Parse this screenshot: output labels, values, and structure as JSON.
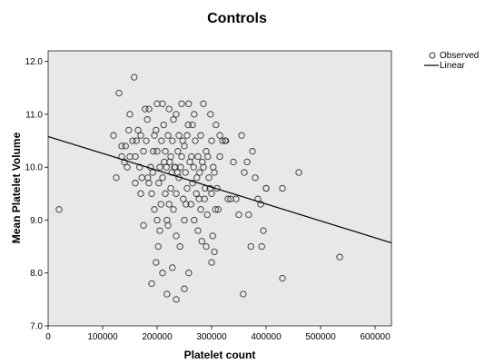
{
  "chart_data": {
    "type": "scatter",
    "title": "Controls",
    "xlabel": "Platelet count",
    "ylabel": "Mean Platelet Volume",
    "xlim": [
      0,
      630000
    ],
    "ylim": [
      7.0,
      12.2
    ],
    "xticks": [
      0,
      100000,
      200000,
      300000,
      400000,
      500000,
      600000
    ],
    "yticks": [
      7.0,
      8.0,
      9.0,
      10.0,
      11.0,
      12.0
    ],
    "xtick_labels": [
      "0",
      "100000",
      "200000",
      "300000",
      "400000",
      "500000",
      "600000"
    ],
    "ytick_labels": [
      "7.0",
      "8.0",
      "9.0",
      "10.0",
      "11.0",
      "12.0"
    ],
    "grid": false,
    "legend_position": "top-right outside",
    "plot_background": "#e8e8e8",
    "marker_color": "#333333",
    "line_color": "#000000",
    "series": [
      {
        "name": "Observed",
        "kind": "scatter",
        "points": [
          [
            20000,
            9.2
          ],
          [
            120000,
            10.6
          ],
          [
            130000,
            11.4
          ],
          [
            125000,
            9.8
          ],
          [
            135000,
            10.2
          ],
          [
            140000,
            10.1
          ],
          [
            142000,
            10.4
          ],
          [
            145000,
            10.0
          ],
          [
            150000,
            10.2
          ],
          [
            155000,
            10.5
          ],
          [
            158000,
            11.7
          ],
          [
            150000,
            11.0
          ],
          [
            160000,
            9.7
          ],
          [
            162000,
            10.5
          ],
          [
            165000,
            10.7
          ],
          [
            168000,
            10.0
          ],
          [
            170000,
            9.5
          ],
          [
            172000,
            9.8
          ],
          [
            175000,
            10.3
          ],
          [
            175000,
            8.9
          ],
          [
            178000,
            11.1
          ],
          [
            180000,
            10.5
          ],
          [
            182000,
            10.9
          ],
          [
            185000,
            11.1
          ],
          [
            185000,
            9.7
          ],
          [
            188000,
            10.0
          ],
          [
            190000,
            9.5
          ],
          [
            190000,
            7.8
          ],
          [
            192000,
            9.9
          ],
          [
            195000,
            10.6
          ],
          [
            195000,
            9.2
          ],
          [
            198000,
            10.7
          ],
          [
            198000,
            8.2
          ],
          [
            200000,
            11.2
          ],
          [
            200000,
            10.3
          ],
          [
            200000,
            9.0
          ],
          [
            202000,
            8.5
          ],
          [
            205000,
            10.0
          ],
          [
            205000,
            8.8
          ],
          [
            208000,
            10.5
          ],
          [
            210000,
            11.2
          ],
          [
            210000,
            9.8
          ],
          [
            210000,
            8.0
          ],
          [
            212000,
            10.8
          ],
          [
            215000,
            10.3
          ],
          [
            215000,
            9.5
          ],
          [
            218000,
            9.0
          ],
          [
            218000,
            7.6
          ],
          [
            220000,
            10.6
          ],
          [
            220000,
            8.9
          ],
          [
            222000,
            11.1
          ],
          [
            222000,
            9.3
          ],
          [
            225000,
            10.2
          ],
          [
            225000,
            9.6
          ],
          [
            228000,
            10.5
          ],
          [
            228000,
            8.1
          ],
          [
            230000,
            10.9
          ],
          [
            230000,
            9.2
          ],
          [
            232000,
            10.0
          ],
          [
            235000,
            11.0
          ],
          [
            235000,
            9.5
          ],
          [
            235000,
            8.7
          ],
          [
            235000,
            7.5
          ],
          [
            238000,
            10.3
          ],
          [
            240000,
            10.6
          ],
          [
            240000,
            9.8
          ],
          [
            242000,
            8.5
          ],
          [
            245000,
            11.2
          ],
          [
            245000,
            10.2
          ],
          [
            248000,
            9.4
          ],
          [
            250000,
            10.4
          ],
          [
            250000,
            9.0
          ],
          [
            250000,
            7.7
          ],
          [
            252000,
            9.9
          ],
          [
            255000,
            10.6
          ],
          [
            255000,
            9.6
          ],
          [
            258000,
            11.2
          ],
          [
            258000,
            8.0
          ],
          [
            260000,
            10.1
          ],
          [
            262000,
            9.3
          ],
          [
            265000,
            10.8
          ],
          [
            265000,
            9.7
          ],
          [
            268000,
            11.0
          ],
          [
            268000,
            9.0
          ],
          [
            270000,
            10.5
          ],
          [
            272000,
            9.5
          ],
          [
            275000,
            10.2
          ],
          [
            275000,
            8.8
          ],
          [
            278000,
            9.9
          ],
          [
            280000,
            10.6
          ],
          [
            280000,
            9.2
          ],
          [
            282000,
            8.6
          ],
          [
            285000,
            11.2
          ],
          [
            285000,
            10.0
          ],
          [
            288000,
            9.6
          ],
          [
            290000,
            10.3
          ],
          [
            290000,
            8.5
          ],
          [
            292000,
            9.1
          ],
          [
            295000,
            9.8
          ],
          [
            298000,
            11.0
          ],
          [
            300000,
            10.5
          ],
          [
            300000,
            9.5
          ],
          [
            300000,
            8.2
          ],
          [
            302000,
            8.7
          ],
          [
            305000,
            9.9
          ],
          [
            305000,
            8.4
          ],
          [
            308000,
            10.8
          ],
          [
            310000,
            9.6
          ],
          [
            312000,
            9.2
          ],
          [
            315000,
            10.6
          ],
          [
            320000,
            10.5
          ],
          [
            325000,
            10.5
          ],
          [
            330000,
            9.4
          ],
          [
            335000,
            9.4
          ],
          [
            340000,
            10.1
          ],
          [
            345000,
            9.4
          ],
          [
            350000,
            9.1
          ],
          [
            355000,
            10.6
          ],
          [
            358000,
            7.6
          ],
          [
            360000,
            9.9
          ],
          [
            365000,
            10.1
          ],
          [
            368000,
            9.1
          ],
          [
            372000,
            8.5
          ],
          [
            375000,
            10.3
          ],
          [
            380000,
            9.8
          ],
          [
            385000,
            9.4
          ],
          [
            390000,
            9.3
          ],
          [
            392000,
            8.5
          ],
          [
            395000,
            8.8
          ],
          [
            400000,
            9.6
          ],
          [
            400000,
            9.6
          ],
          [
            430000,
            9.6
          ],
          [
            430000,
            7.9
          ],
          [
            460000,
            9.9
          ],
          [
            535000,
            8.3
          ],
          [
            135000,
            10.4
          ],
          [
            148000,
            10.7
          ],
          [
            160000,
            10.2
          ],
          [
            170000,
            10.6
          ],
          [
            183000,
            9.8
          ],
          [
            193000,
            10.3
          ],
          [
            203000,
            9.7
          ],
          [
            207000,
            9.3
          ],
          [
            213000,
            10.1
          ],
          [
            217000,
            10.0
          ],
          [
            223000,
            10.1
          ],
          [
            227000,
            9.9
          ],
          [
            233000,
            10.0
          ],
          [
            237000,
            9.9
          ],
          [
            243000,
            10.0
          ],
          [
            247000,
            10.5
          ],
          [
            253000,
            9.3
          ],
          [
            257000,
            10.8
          ],
          [
            263000,
            10.2
          ],
          [
            267000,
            10.0
          ],
          [
            273000,
            9.8
          ],
          [
            277000,
            9.4
          ],
          [
            283000,
            10.1
          ],
          [
            287000,
            9.4
          ],
          [
            293000,
            10.2
          ],
          [
            297000,
            9.6
          ],
          [
            303000,
            10.0
          ],
          [
            307000,
            9.2
          ],
          [
            315000,
            10.2
          ],
          [
            326000,
            10.5
          ]
        ]
      },
      {
        "name": "Linear",
        "kind": "line",
        "points": [
          [
            0,
            10.58
          ],
          [
            630000,
            8.57
          ]
        ]
      }
    ]
  }
}
